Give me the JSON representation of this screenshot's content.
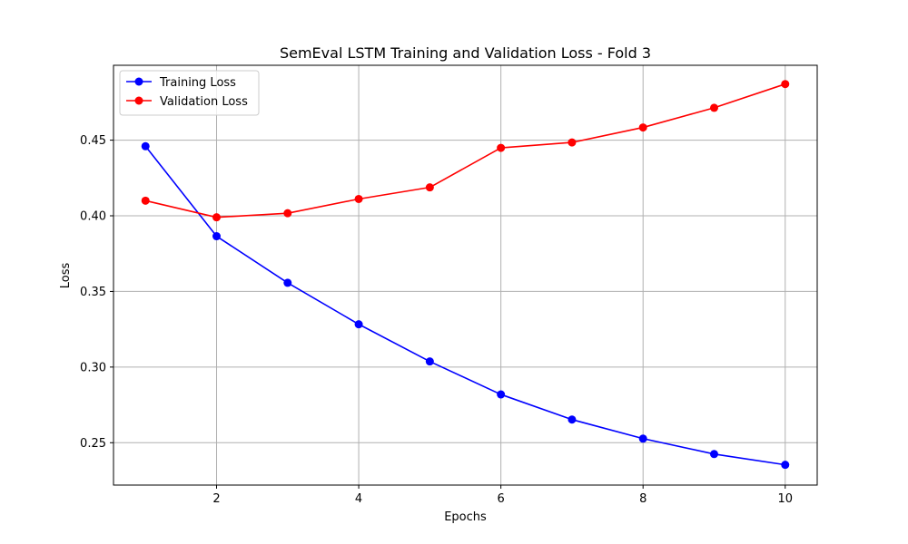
{
  "chart_data": {
    "type": "line",
    "title": "SemEval LSTM Training and Validation Loss - Fold 3",
    "xlabel": "Epochs",
    "ylabel": "Loss",
    "x": [
      1,
      2,
      3,
      4,
      5,
      6,
      7,
      8,
      9,
      10
    ],
    "xlim": [
      0.55,
      10.45
    ],
    "ylim": [
      0.222,
      0.4995
    ],
    "xticks": [
      2,
      4,
      6,
      8,
      10
    ],
    "xtick_labels": [
      "2",
      "4",
      "6",
      "8",
      "10"
    ],
    "yticks": [
      0.25,
      0.3,
      0.35,
      0.4,
      0.45
    ],
    "ytick_labels": [
      "0.25",
      "0.30",
      "0.35",
      "0.40",
      "0.45"
    ],
    "grid": true,
    "legend_position": "top-left",
    "series": [
      {
        "name": "Training Loss",
        "color": "#0000ff",
        "marker": "circle",
        "values": [
          0.446,
          0.3865,
          0.3557,
          0.3283,
          0.3037,
          0.2819,
          0.2653,
          0.2527,
          0.2425,
          0.2354
        ]
      },
      {
        "name": "Validation Loss",
        "color": "#ff0000",
        "marker": "circle",
        "values": [
          0.41,
          0.399,
          0.4017,
          0.4111,
          0.4188,
          0.4449,
          0.4485,
          0.4584,
          0.4714,
          0.4871
        ]
      }
    ]
  }
}
